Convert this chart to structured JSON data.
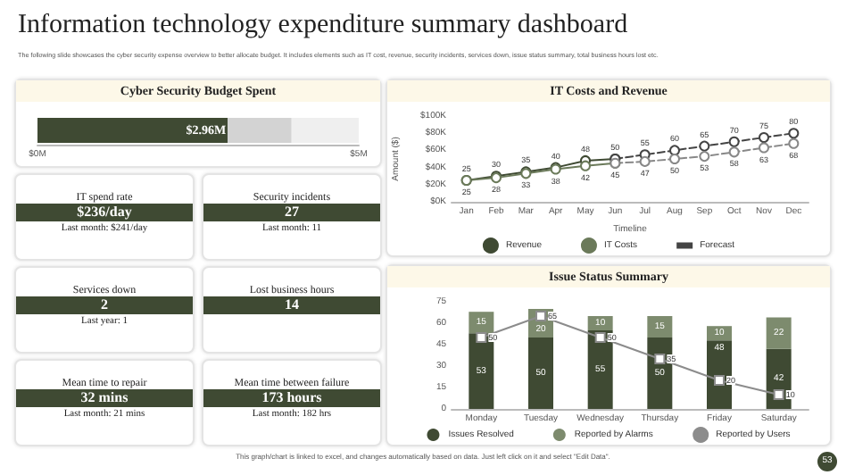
{
  "chart_data": [
    {
      "type": "other",
      "title": "Information technology expenditure summary dashboard",
      "subtitle": "The following slide showcases the cyber security expense overview to better allocate budget. It includes elements such as IT cost, revenue, security incidents, services down, issue status summary, total business hours lost etc.",
      "annotations": [
        "This graph/chart is linked to excel, and changes automatically based on data. Just left click on it and select \"Edit Data\".",
        "53"
      ]
    },
    {
      "type": "bar",
      "orientation": "horizontal",
      "stacked": true,
      "title": "Cyber Security Budget Spent",
      "categories": [
        null
      ],
      "series": [
        {
          "color": "#3f4a33",
          "values": [
            2.96
          ],
          "value_labels": [
            "$2.96M"
          ]
        },
        {
          "color": "#d3d3d3",
          "values": [
            0.99
          ]
        }
      ],
      "xlim": [
        0,
        5
      ],
      "xticks": [
        {
          "value": 0,
          "label": "$0M"
        },
        {
          "value": 5,
          "label": "$5M"
        }
      ],
      "tick_labels": "x"
    },
    {
      "type": "other",
      "title": "IT spend rate",
      "annotations": [
        "$236/day",
        "Last month: $241/day"
      ]
    },
    {
      "type": "other",
      "title": "Security incidents",
      "annotations": [
        "27",
        "Last month: 11"
      ]
    },
    {
      "type": "other",
      "title": "Services down",
      "annotations": [
        "2",
        "Last year: 1"
      ]
    },
    {
      "type": "other",
      "title": "Lost business hours",
      "annotations": [
        "14"
      ]
    },
    {
      "type": "other",
      "title": "Mean time to repair",
      "annotations": [
        "32 mins",
        "Last month: 21 mins"
      ]
    },
    {
      "type": "other",
      "title": "Mean time between failure",
      "annotations": [
        "173 hours",
        "Last month: 182 hrs"
      ]
    },
    {
      "type": "line",
      "title": "IT Costs and Revenue",
      "xlabel": "Timeline",
      "ylabel": "Amount ($)",
      "categories": [
        "Jan",
        "Feb",
        "Mar",
        "Apr",
        "May",
        "Jun",
        "Jul",
        "Aug",
        "Sep",
        "Oct",
        "Nov",
        "Dec"
      ],
      "series": [
        {
          "name": "Revenue",
          "color": "#3f4a33",
          "values": [
            25,
            30,
            35,
            40,
            48,
            50,
            null,
            null,
            null,
            null,
            null,
            null
          ],
          "value_labels": [
            "25",
            "30",
            "35",
            "40",
            "48",
            "50",
            null,
            null,
            null,
            null,
            null,
            null
          ]
        },
        {
          "name": "IT Costs",
          "color": "#6b7a5a",
          "values": [
            25,
            28,
            33,
            38,
            42,
            45,
            null,
            null,
            null,
            null,
            null,
            null
          ],
          "value_labels": [
            "25",
            "28",
            "33",
            "38",
            "42",
            "45",
            null,
            null,
            null,
            null,
            null,
            null
          ]
        },
        {
          "name": "Forecast",
          "color": "#444444",
          "line_style": "dashed",
          "values": [
            null,
            null,
            null,
            null,
            null,
            50,
            55,
            60,
            65,
            70,
            75,
            80
          ],
          "value_labels": [
            null,
            null,
            null,
            null,
            null,
            null,
            "55",
            "60",
            "65",
            "70",
            "75",
            "80"
          ]
        },
        {
          "color": "#888888",
          "line_style": "dashed",
          "values": [
            null,
            null,
            null,
            null,
            null,
            45,
            47,
            50,
            53,
            58,
            63,
            68
          ],
          "value_labels": [
            null,
            null,
            null,
            null,
            null,
            null,
            "47",
            "50",
            "53",
            "58",
            "63",
            "68"
          ]
        }
      ],
      "ylim": [
        0,
        100
      ],
      "yticks": [
        {
          "value": 0,
          "label": "$0K"
        },
        {
          "value": 20,
          "label": "$20K"
        },
        {
          "value": 40,
          "label": "$40K"
        },
        {
          "value": 60,
          "label": "$60K"
        },
        {
          "value": 80,
          "label": "$80K"
        },
        {
          "value": 100,
          "label": "$100K"
        }
      ],
      "marker": "circle",
      "legend": "bottom"
    },
    {
      "type": "bar",
      "stacked": true,
      "title": "Issue Status Summary",
      "categories": [
        "Monday",
        "Tuesday",
        "Wednesday",
        "Thursday",
        "Friday",
        "Saturday"
      ],
      "series": [
        {
          "name": "Issues Resolved",
          "color": "#3f4a33",
          "values": [
            53,
            50,
            55,
            50,
            48,
            42
          ]
        },
        {
          "name": "Reported by Alarms",
          "color": "#7d8b6e",
          "values": [
            15,
            20,
            10,
            15,
            10,
            22
          ]
        },
        {
          "name": "Reported by Users",
          "type": "line",
          "marker": "square",
          "color": "#8c8c8c",
          "values": [
            50,
            65,
            50,
            35,
            20,
            10
          ]
        }
      ],
      "ylim": [
        0,
        75
      ],
      "yticks": [
        0,
        15,
        30,
        45,
        60,
        75
      ],
      "data_labels": true,
      "legend": "bottom"
    }
  ]
}
